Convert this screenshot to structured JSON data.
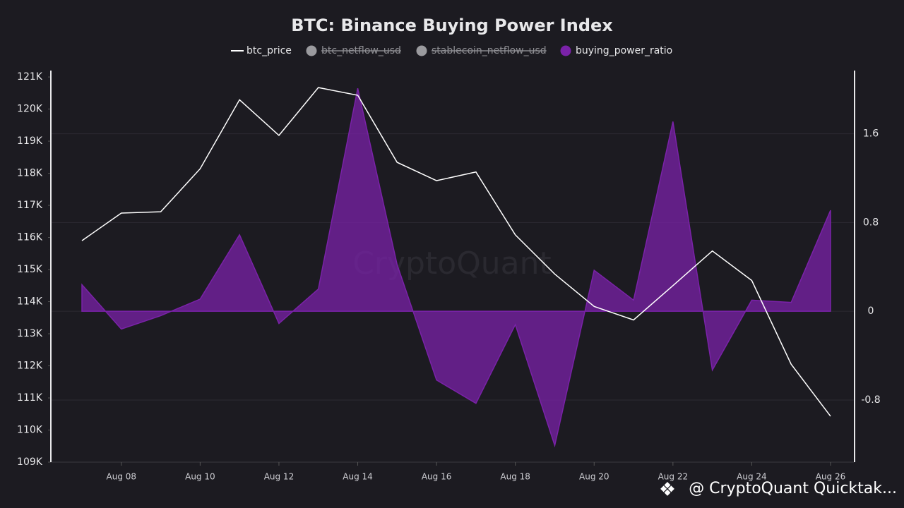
{
  "chart_data": {
    "type": "line-area",
    "title": "BTC: Binance Buying Power Index",
    "watermark": "CryptoQuant",
    "footer": "@ CryptoQuant Quicktak...",
    "categories": [
      null,
      "Aug 08",
      null,
      "Aug 10",
      null,
      "Aug 12",
      null,
      "Aug 14",
      null,
      "Aug 16",
      null,
      "Aug 18",
      null,
      "Aug 20",
      null,
      "Aug 22",
      null,
      "Aug 24",
      null,
      "Aug 26"
    ],
    "series": [
      {
        "name": "btc_price",
        "color": "#ffffff",
        "axis": "y",
        "kind": "line",
        "values": [
          115900,
          116760,
          116800,
          118140,
          120290,
          119180,
          120670,
          120430,
          118340,
          117770,
          118040,
          116080,
          114860,
          113850,
          113430,
          114500,
          115580,
          114660,
          112050,
          110430
        ]
      },
      {
        "name": "btc_netflow_usd",
        "color": "#9a9a9e",
        "hidden": true
      },
      {
        "name": "stablecoin_netflow_usd",
        "color": "#9a9a9e",
        "hidden": true
      },
      {
        "name": "buying_power_ratio",
        "color": "#7a22a8",
        "axis": "y2",
        "kind": "area",
        "values": [
          0.24,
          -0.16,
          -0.04,
          0.11,
          0.69,
          -0.11,
          0.2,
          2.01,
          0.42,
          -0.62,
          -0.83,
          -0.12,
          -1.21,
          0.37,
          0.1,
          1.71,
          -0.53,
          0.1,
          0.08,
          0.91
        ]
      }
    ],
    "ylim": [
      109000,
      121200
    ],
    "yticks": [
      {
        "value": 109000,
        "label": "109K"
      },
      {
        "value": 110000,
        "label": "110K"
      },
      {
        "value": 111000,
        "label": "111K"
      },
      {
        "value": 112000,
        "label": "112K"
      },
      {
        "value": 113000,
        "label": "113K"
      },
      {
        "value": 114000,
        "label": "114K"
      },
      {
        "value": 115000,
        "label": "115K"
      },
      {
        "value": 116000,
        "label": "116K"
      },
      {
        "value": 117000,
        "label": "117K"
      },
      {
        "value": 118000,
        "label": "118K"
      },
      {
        "value": 119000,
        "label": "119K"
      },
      {
        "value": 120000,
        "label": "120K"
      },
      {
        "value": 121000,
        "label": "121K"
      }
    ],
    "y2lim": [
      -1.36,
      2.17
    ],
    "y2ticks": [
      -0.8,
      0,
      0.8,
      1.6
    ],
    "grid": true
  }
}
